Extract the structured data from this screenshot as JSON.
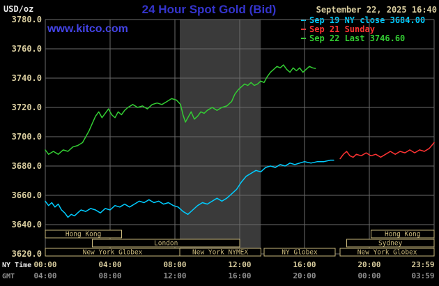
{
  "header": {
    "unit_label": "USD/oz",
    "title": "24 Hour Spot Gold (Bid)",
    "datetime": "September 22, 2025 16:40",
    "watermark": "www.kitco.com"
  },
  "legend": [
    {
      "label": "Sep 19 NY close 3684.00",
      "color": "#00ccff"
    },
    {
      "label": "Sep 21 Sunday",
      "color": "#ff3333"
    },
    {
      "label": "Sep 22 Last 3746.60",
      "color": "#33cc33"
    }
  ],
  "axes": {
    "y_ticks": [
      "3780.0",
      "3760.0",
      "3740.0",
      "3720.0",
      "3700.0",
      "3680.0",
      "3660.0",
      "3640.0",
      "3620.0"
    ],
    "x_row1_label": "NY Time",
    "x_row1": [
      "00:00",
      "04:00",
      "08:00",
      "12:00",
      "16:00",
      "20:00",
      "23:59"
    ],
    "x_row2_label": "GMT",
    "x_row2": [
      "04:00",
      "08:00",
      "12:00",
      "16:00",
      "20:00",
      "00:00",
      "03:59"
    ]
  },
  "sessions": {
    "rows": [
      {
        "boxes": [
          {
            "label": "Hong Kong",
            "start": 0,
            "end": 4.7
          },
          {
            "label": "Hong Kong",
            "start": 20.1,
            "end": 24
          }
        ]
      },
      {
        "boxes": [
          {
            "label": "London",
            "start": 2.9,
            "end": 12
          },
          {
            "label": "Sydney",
            "start": 18.6,
            "end": 24
          }
        ]
      },
      {
        "boxes": [
          {
            "label": "New York Globex",
            "start": 0,
            "end": 8.3
          },
          {
            "label": "New York NYMEX",
            "start": 8.3,
            "end": 13.3
          },
          {
            "label": "NY Globex",
            "start": 13.5,
            "end": 17.9
          },
          {
            "label": "New York Globex",
            "start": 18.2,
            "end": 24
          }
        ]
      }
    ]
  },
  "colors": {
    "background": "#000000",
    "title": "#3434cc",
    "watermark": "#4343e6",
    "axis_text": "#d8cc9e",
    "secondary_text": "#8f8f8f",
    "grid": "#6b6b6b",
    "session": "#c9b87c",
    "band": "#3a3a3a"
  },
  "chart_data": {
    "type": "line",
    "title": "24 Hour Spot Gold (Bid)",
    "xlabel": "NY Time (hours, 00:00-23:59)",
    "ylabel": "USD/oz",
    "xlim": [
      0,
      24
    ],
    "ylim": [
      3620,
      3780
    ],
    "y_tick_step": 20,
    "x_tick_step_hours": 4,
    "grid": true,
    "legend_position": "top-right",
    "highlight_band_hours": [
      8.3,
      13.3
    ],
    "series": [
      {
        "id": "sep19",
        "name": "Sep 19 NY close 3684.00",
        "color": "#00ccff",
        "points": [
          [
            0,
            3656
          ],
          [
            0.2,
            3653
          ],
          [
            0.4,
            3655
          ],
          [
            0.6,
            3652
          ],
          [
            0.8,
            3654
          ],
          [
            1.0,
            3650
          ],
          [
            1.2,
            3648
          ],
          [
            1.4,
            3645
          ],
          [
            1.6,
            3647
          ],
          [
            1.8,
            3646
          ],
          [
            2.0,
            3648
          ],
          [
            2.2,
            3650
          ],
          [
            2.5,
            3649
          ],
          [
            2.8,
            3651
          ],
          [
            3.1,
            3650
          ],
          [
            3.4,
            3648
          ],
          [
            3.7,
            3651
          ],
          [
            4.0,
            3650
          ],
          [
            4.3,
            3653
          ],
          [
            4.6,
            3652
          ],
          [
            4.9,
            3654
          ],
          [
            5.2,
            3652
          ],
          [
            5.5,
            3654
          ],
          [
            5.8,
            3656
          ],
          [
            6.1,
            3655
          ],
          [
            6.4,
            3657
          ],
          [
            6.7,
            3655
          ],
          [
            7.0,
            3656
          ],
          [
            7.3,
            3654
          ],
          [
            7.6,
            3655
          ],
          [
            7.9,
            3653
          ],
          [
            8.2,
            3652
          ],
          [
            8.5,
            3649
          ],
          [
            8.8,
            3647
          ],
          [
            9.1,
            3650
          ],
          [
            9.4,
            3653
          ],
          [
            9.7,
            3655
          ],
          [
            10.0,
            3654
          ],
          [
            10.3,
            3656
          ],
          [
            10.6,
            3658
          ],
          [
            10.9,
            3656
          ],
          [
            11.2,
            3658
          ],
          [
            11.5,
            3661
          ],
          [
            11.8,
            3664
          ],
          [
            12.1,
            3669
          ],
          [
            12.4,
            3673
          ],
          [
            12.7,
            3675
          ],
          [
            13.0,
            3677
          ],
          [
            13.3,
            3676
          ],
          [
            13.6,
            3679
          ],
          [
            13.9,
            3680
          ],
          [
            14.2,
            3679
          ],
          [
            14.5,
            3681
          ],
          [
            14.8,
            3680
          ],
          [
            15.1,
            3682
          ],
          [
            15.4,
            3681
          ],
          [
            15.7,
            3682
          ],
          [
            16.0,
            3683
          ],
          [
            16.4,
            3682
          ],
          [
            16.8,
            3683
          ],
          [
            17.2,
            3683
          ],
          [
            17.6,
            3684
          ],
          [
            17.8,
            3684
          ]
        ]
      },
      {
        "id": "sep21",
        "name": "Sep 21 Sunday",
        "color": "#ff3333",
        "points": [
          [
            18.2,
            3685
          ],
          [
            18.4,
            3688
          ],
          [
            18.6,
            3690
          ],
          [
            18.8,
            3687
          ],
          [
            19.0,
            3686
          ],
          [
            19.2,
            3688
          ],
          [
            19.5,
            3687
          ],
          [
            19.8,
            3689
          ],
          [
            20.1,
            3687
          ],
          [
            20.4,
            3688
          ],
          [
            20.7,
            3686
          ],
          [
            21.0,
            3688
          ],
          [
            21.3,
            3690
          ],
          [
            21.6,
            3688
          ],
          [
            21.9,
            3690
          ],
          [
            22.2,
            3689
          ],
          [
            22.5,
            3691
          ],
          [
            22.8,
            3689
          ],
          [
            23.1,
            3691
          ],
          [
            23.4,
            3690
          ],
          [
            23.7,
            3692
          ],
          [
            23.85,
            3694
          ],
          [
            24.0,
            3696
          ]
        ]
      },
      {
        "id": "sep22",
        "name": "Sep 22 Last 3746.60",
        "color": "#33cc33",
        "points": [
          [
            0,
            3691
          ],
          [
            0.2,
            3688
          ],
          [
            0.5,
            3690
          ],
          [
            0.8,
            3688
          ],
          [
            1.1,
            3691
          ],
          [
            1.4,
            3690
          ],
          [
            1.7,
            3693
          ],
          [
            2.0,
            3694
          ],
          [
            2.3,
            3696
          ],
          [
            2.5,
            3700
          ],
          [
            2.7,
            3704
          ],
          [
            2.9,
            3709
          ],
          [
            3.1,
            3714
          ],
          [
            3.3,
            3717
          ],
          [
            3.5,
            3713
          ],
          [
            3.7,
            3716
          ],
          [
            3.9,
            3719
          ],
          [
            4.1,
            3715
          ],
          [
            4.3,
            3713
          ],
          [
            4.5,
            3717
          ],
          [
            4.7,
            3715
          ],
          [
            4.9,
            3718
          ],
          [
            5.1,
            3720
          ],
          [
            5.4,
            3722
          ],
          [
            5.7,
            3720
          ],
          [
            6.0,
            3721
          ],
          [
            6.3,
            3719
          ],
          [
            6.6,
            3722
          ],
          [
            6.9,
            3723
          ],
          [
            7.2,
            3722
          ],
          [
            7.5,
            3724
          ],
          [
            7.8,
            3726
          ],
          [
            8.1,
            3725
          ],
          [
            8.35,
            3722
          ],
          [
            8.5,
            3715
          ],
          [
            8.65,
            3710
          ],
          [
            8.8,
            3713
          ],
          [
            9.0,
            3717
          ],
          [
            9.2,
            3712
          ],
          [
            9.4,
            3714
          ],
          [
            9.6,
            3717
          ],
          [
            9.8,
            3716
          ],
          [
            10.0,
            3718
          ],
          [
            10.3,
            3720
          ],
          [
            10.6,
            3718
          ],
          [
            10.9,
            3720
          ],
          [
            11.2,
            3721
          ],
          [
            11.5,
            3724
          ],
          [
            11.7,
            3729
          ],
          [
            11.9,
            3732
          ],
          [
            12.1,
            3734
          ],
          [
            12.3,
            3736
          ],
          [
            12.5,
            3735
          ],
          [
            12.7,
            3737
          ],
          [
            12.9,
            3735
          ],
          [
            13.1,
            3736
          ],
          [
            13.3,
            3738
          ],
          [
            13.5,
            3737
          ],
          [
            13.7,
            3741
          ],
          [
            13.9,
            3744
          ],
          [
            14.1,
            3746
          ],
          [
            14.3,
            3748
          ],
          [
            14.5,
            3747
          ],
          [
            14.7,
            3749
          ],
          [
            14.9,
            3746
          ],
          [
            15.1,
            3744
          ],
          [
            15.3,
            3747
          ],
          [
            15.5,
            3745
          ],
          [
            15.7,
            3747
          ],
          [
            15.9,
            3744
          ],
          [
            16.1,
            3746
          ],
          [
            16.3,
            3748
          ],
          [
            16.5,
            3747
          ],
          [
            16.67,
            3746.6
          ]
        ]
      }
    ]
  }
}
